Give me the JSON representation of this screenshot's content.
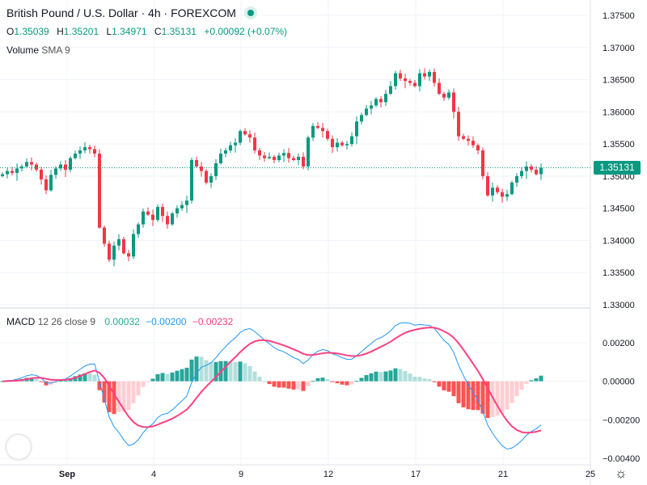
{
  "header": {
    "title": "British Pound / U.S. Dollar · 4h · FOREXCOM",
    "ohlc": {
      "o_label": "O",
      "o": "1.35039",
      "h_label": "H",
      "h": "1.35201",
      "l_label": "L",
      "l": "1.34971",
      "c_label": "C",
      "c": "1.35131",
      "change": "+0.00092 (+0.07%)"
    },
    "volume_label": "Volume",
    "volume_sma": "SMA 9",
    "macd_label": "MACD",
    "macd_params": "12 26 close 9",
    "macd_hist": "0.00032",
    "macd_line": "−0.00200",
    "macd_signal": "−0.00232"
  },
  "price_tag": "1.35131",
  "logo": "TV",
  "colors": {
    "up": "#089981",
    "down": "#f23645",
    "macd": "#2196f3",
    "signal": "#ff4081",
    "hist_up_strong": "#26a69a",
    "hist_up_weak": "#b2dfdb",
    "hist_dn_strong": "#ff5252",
    "hist_dn_weak": "#ffcdd2"
  },
  "chart_data": {
    "type": "candlestick",
    "price_axis": [
      "1.37500",
      "1.37000",
      "1.36500",
      "1.36000",
      "1.35500",
      "1.35000",
      "1.34500",
      "1.34000",
      "1.33500",
      "1.33000"
    ],
    "price_range": [
      1.33,
      1.375
    ],
    "macd_axis": [
      "0.00200",
      "0.00000",
      "−0.00200",
      "−0.00400"
    ],
    "macd_range": [
      -0.004,
      0.002
    ],
    "x_labels": [
      "Sep",
      "4",
      "9",
      "12",
      "17",
      "21",
      "25"
    ],
    "last_price": 1.35131,
    "close": [
      1.3503,
      1.3508,
      1.3505,
      1.3512,
      1.3515,
      1.3522,
      1.3518,
      1.351,
      1.3495,
      1.3478,
      1.3502,
      1.3512,
      1.3518,
      1.351,
      1.3528,
      1.3535,
      1.354,
      1.3545,
      1.3542,
      1.3535,
      1.342,
      1.3395,
      1.337,
      1.3392,
      1.3402,
      1.338,
      1.3375,
      1.341,
      1.3425,
      1.3445,
      1.344,
      1.3432,
      1.3452,
      1.3438,
      1.3425,
      1.3442,
      1.345,
      1.3455,
      1.3462,
      1.3525,
      1.3515,
      1.3508,
      1.349,
      1.35,
      1.352,
      1.3535,
      1.354,
      1.3548,
      1.3552,
      1.357,
      1.3565,
      1.356,
      1.354,
      1.3532,
      1.3528,
      1.353,
      1.3525,
      1.3532,
      1.3536,
      1.3528,
      1.3525,
      1.353,
      1.3515,
      1.356,
      1.3578,
      1.3575,
      1.357,
      1.3558,
      1.3545,
      1.3552,
      1.3548,
      1.355,
      1.3562,
      1.3585,
      1.3595,
      1.3605,
      1.361,
      1.362,
      1.3615,
      1.3628,
      1.364,
      1.366,
      1.3652,
      1.3648,
      1.3645,
      1.364,
      1.366,
      1.3655,
      1.3662,
      1.3645,
      1.3628,
      1.3622,
      1.363,
      1.36,
      1.3562,
      1.3558,
      1.3555,
      1.3548,
      1.354,
      1.35,
      1.347,
      1.3482,
      1.3475,
      1.3468,
      1.3472,
      1.349,
      1.35,
      1.3508,
      1.3515,
      1.351,
      1.3503,
      1.3513
    ]
  }
}
